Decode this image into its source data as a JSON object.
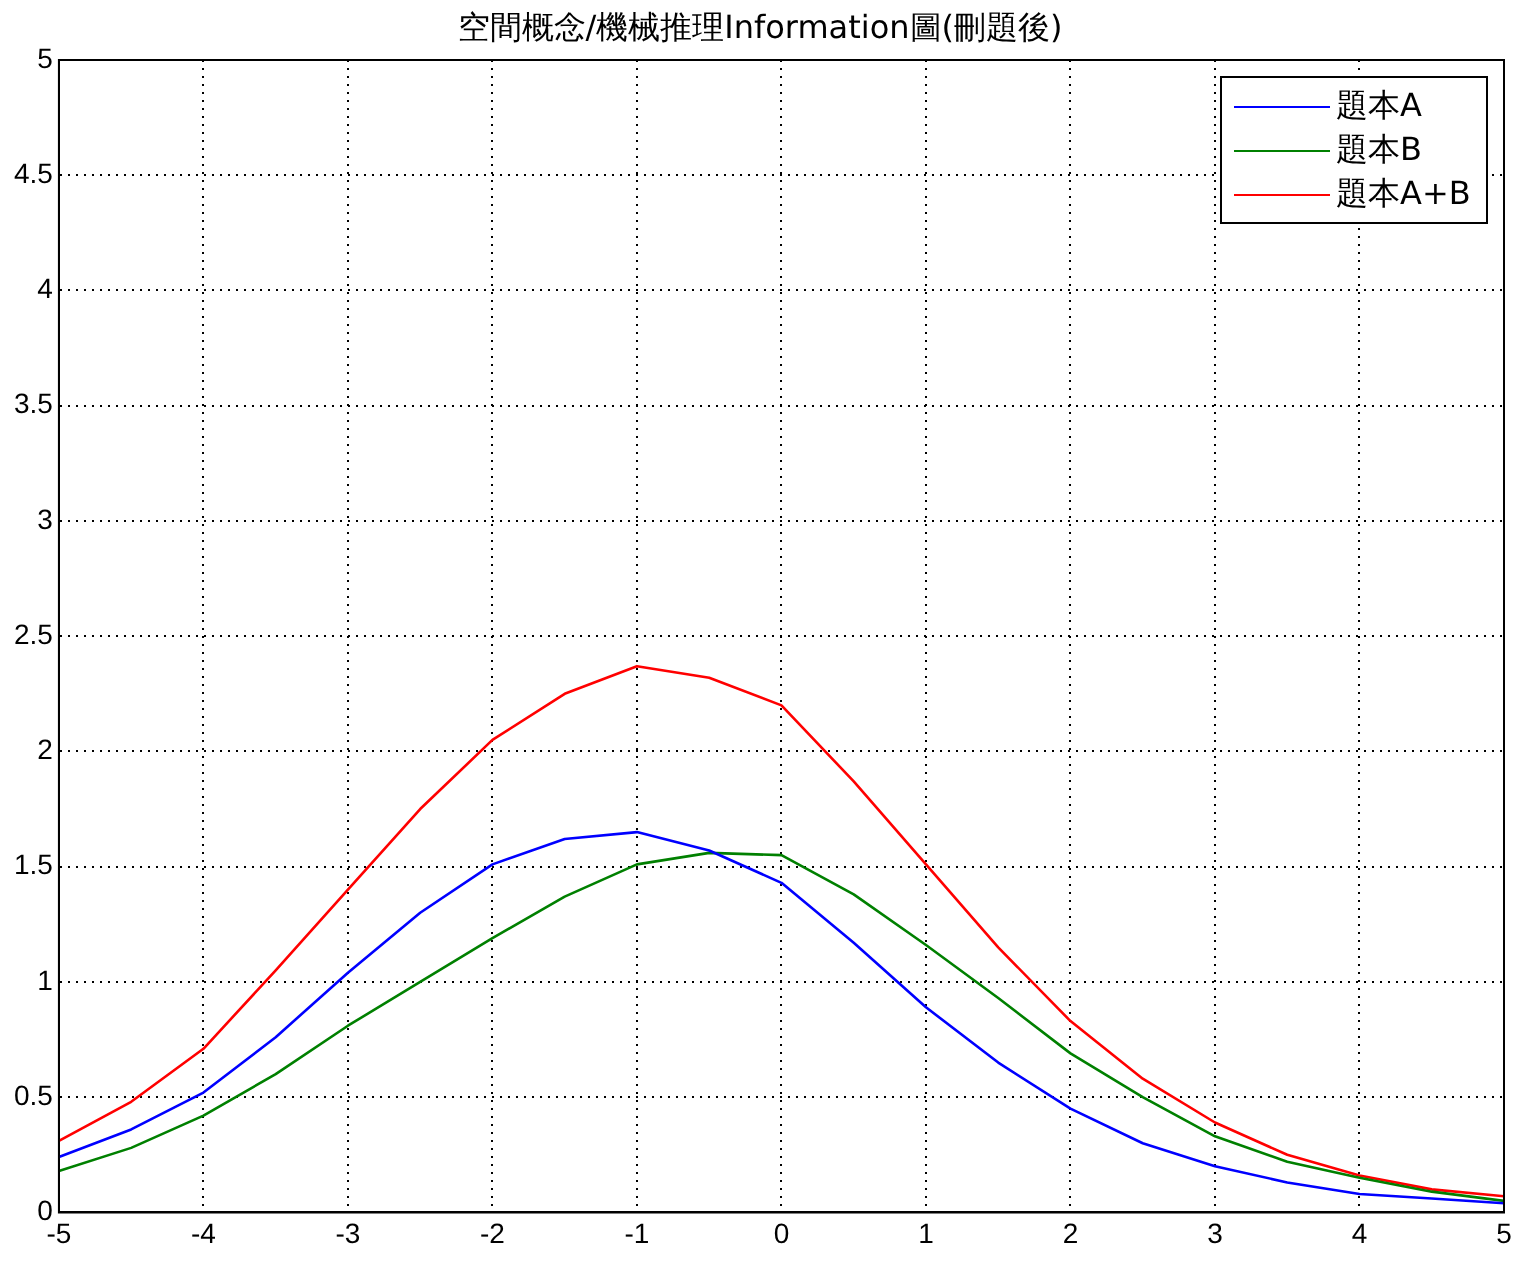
{
  "chart_data": {
    "type": "line",
    "title": "空間概念/機械推理Information圖(刪題後)",
    "x": [
      -5,
      -4.5,
      -4,
      -3.5,
      -3,
      -2.5,
      -2,
      -1.5,
      -1,
      -0.5,
      0,
      0.5,
      1,
      1.5,
      2,
      2.5,
      3,
      3.5,
      4,
      4.5,
      5
    ],
    "series": [
      {
        "name": "題本A",
        "color": "#0000ff",
        "values": [
          0.24,
          0.36,
          0.52,
          0.76,
          1.04,
          1.3,
          1.51,
          1.62,
          1.65,
          1.57,
          1.43,
          1.17,
          0.89,
          0.65,
          0.45,
          0.3,
          0.2,
          0.13,
          0.08,
          0.06,
          0.04
        ]
      },
      {
        "name": "題本B",
        "color": "#008000",
        "values": [
          0.18,
          0.28,
          0.42,
          0.6,
          0.81,
          1.0,
          1.19,
          1.37,
          1.51,
          1.56,
          1.55,
          1.38,
          1.16,
          0.93,
          0.69,
          0.5,
          0.33,
          0.22,
          0.15,
          0.09,
          0.05
        ]
      },
      {
        "name": "題本A+B",
        "color": "#ff0000",
        "values": [
          0.31,
          0.48,
          0.71,
          1.05,
          1.4,
          1.75,
          2.05,
          2.25,
          2.37,
          2.32,
          2.2,
          1.87,
          1.51,
          1.15,
          0.83,
          0.58,
          0.39,
          0.25,
          0.16,
          0.1,
          0.07
        ]
      }
    ],
    "xlim": [
      -5,
      5
    ],
    "xticks": [
      -5,
      -4,
      -3,
      -2,
      -1,
      0,
      1,
      2,
      3,
      4,
      5
    ],
    "ylim": [
      0,
      5
    ],
    "yticks": [
      0,
      0.5,
      1,
      1.5,
      2,
      2.5,
      3,
      3.5,
      4,
      4.5,
      5
    ],
    "grid": true,
    "legend": "top right",
    "line_style": "solid",
    "marker": "none"
  }
}
